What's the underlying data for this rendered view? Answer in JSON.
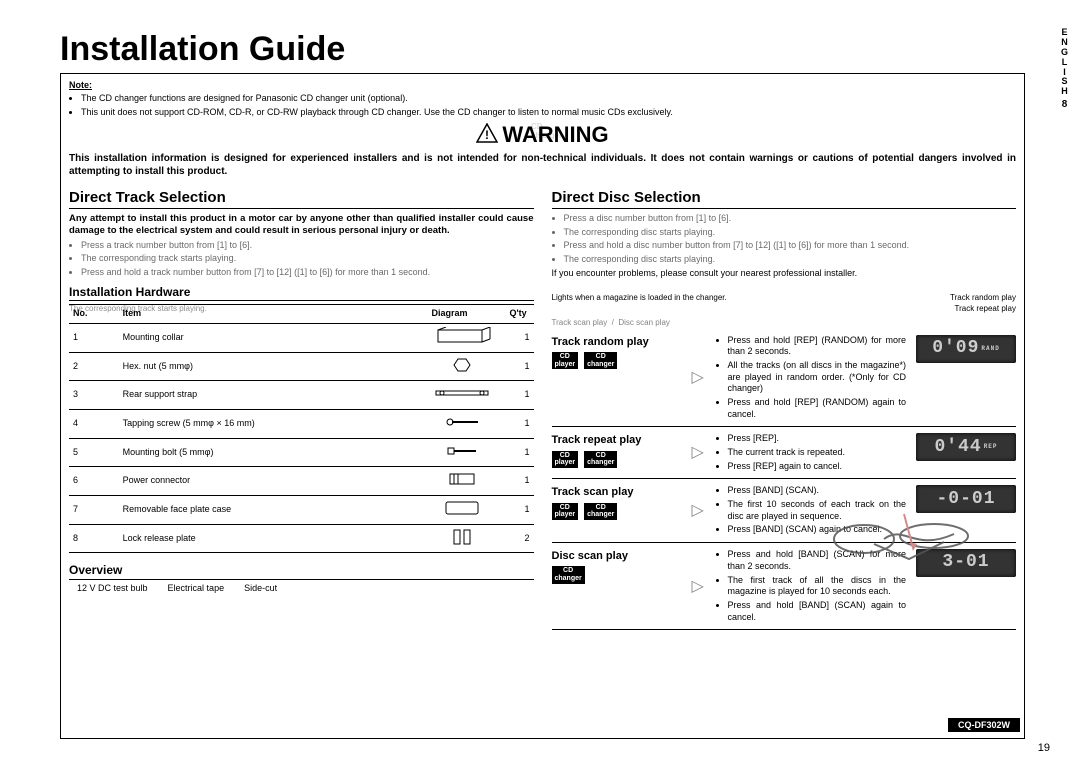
{
  "side": {
    "lang": "E\nN\nG\nL\nI\nS\nH",
    "num": "8"
  },
  "title": "Installation Guide",
  "note": {
    "label": "Note:",
    "b1": "The CD changer functions are designed for Panasonic CD changer unit (optional).",
    "b2": "This unit does not support CD-ROM, CD-R, or CD-RW playback through CD changer. Use the CD changer to listen to normal music CDs exclusively."
  },
  "warn_word": "WARNING",
  "warn_body": "This installation information is designed for experienced installers and is not intended for non-technical individuals. It does not contain warnings or cautions of potential dangers involved in attempting to install this product.",
  "warn_body2": "Any attempt to install this product in a motor car by anyone other than qualified installer could cause damage to the electrical system and could result in serious personal injury or death.",
  "warn_body3": "If you encounter problems, please consult your nearest professional installer.",
  "left": {
    "head": "Direct Track Selection",
    "b1": "Press a track number button from [1] to [6].",
    "b2": "Press and hold a track number button from [7] to [12] ([1] to [6]) for more than 1 second.",
    "b3": "The corresponding track starts playing.",
    "hw_head": "Installation Hardware",
    "cols": {
      "c1": "No.",
      "c2": "Item",
      "c3": "Diagram",
      "c4": "Q'ty"
    },
    "rows": [
      {
        "no": "1",
        "item": "Mounting collar",
        "qty": "1"
      },
      {
        "no": "2",
        "item": "Hex. nut (5 mmφ)",
        "qty": "1"
      },
      {
        "no": "3",
        "item": "Rear support strap",
        "qty": "1"
      },
      {
        "no": "4",
        "item": "Tapping screw (5 mmφ × 16 mm)",
        "qty": "1"
      },
      {
        "no": "5",
        "item": "Mounting bolt (5 mmφ)",
        "qty": "1"
      },
      {
        "no": "6",
        "item": "Power connector",
        "qty": "1"
      },
      {
        "no": "7",
        "item": "Removable face plate case",
        "qty": "1"
      },
      {
        "no": "8",
        "item": "Lock release plate",
        "qty": "2"
      }
    ],
    "overview": "Overview",
    "testnote": {
      "a": "12 V DC test bulb",
      "b": "Electrical tape",
      "c": "Side-cut"
    }
  },
  "right": {
    "head": "Direct Disc Selection",
    "b1": "Press a disc number button from [1] to [6].",
    "b2": "The corresponding disc starts playing.",
    "b3": "Press and hold a disc number button from [7] to [12] ([1] to [6]) for more than 1 second.",
    "b4": "The corresponding disc starts playing.",
    "headnote1": "Lights when a magazine is loaded in the changer.",
    "headnote2a": "Track random play",
    "headnote2b": "Track repeat play",
    "scan_note1": "Track scan play",
    "scan_note2": "Disc scan play"
  },
  "plays": [
    {
      "title": "Track random play",
      "badges": [
        "CD player",
        "CD changer"
      ],
      "desc": [
        "Press and hold [REP] (RANDOM) for more than 2 seconds.",
        "All the tracks (on all discs in the magazine*) are played in random order. (*Only for CD changer)",
        "Press and hold [REP] (RANDOM) again to cancel."
      ],
      "lcd": "0'09",
      "lcd_sub": "RAND"
    },
    {
      "title": "Track repeat play",
      "badges": [
        "CD player",
        "CD changer"
      ],
      "desc": [
        "Press [REP].",
        "The current track is repeated.",
        "Press [REP] again to cancel."
      ],
      "lcd": "0'44",
      "lcd_sub": "REP"
    },
    {
      "title": "Track scan play",
      "badges": [
        "CD player",
        "CD changer"
      ],
      "desc": [
        "Press [BAND] (SCAN).",
        "The first 10 seconds of each track on the disc are played in sequence.",
        "Press [BAND] (SCAN) again to cancel."
      ],
      "lcd": "-0-01",
      "lcd_sub": ""
    },
    {
      "title": "Disc scan play",
      "badges": [
        "CD changer"
      ],
      "desc": [
        "Press and hold [BAND] (SCAN) for more than 2 seconds.",
        "The first track of all the discs in the magazine is played for 10 seconds each.",
        "Press and hold [BAND] (SCAN) again to cancel."
      ],
      "lcd": "3-01",
      "lcd_sub": ""
    }
  ],
  "badge_cd_player": "CD\nplayer",
  "badge_cd_changer": "CD\nchanger",
  "page_num": "19",
  "model": "CQ-DF302W",
  "colors": {
    "lcd_bg": "#333333",
    "lcd_fg": "#cccccc",
    "badge_bg": "#000000"
  }
}
